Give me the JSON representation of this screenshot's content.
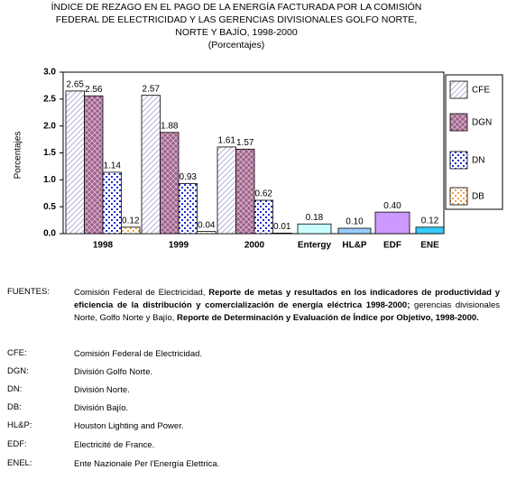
{
  "chart_data": {
    "type": "bar",
    "title": [
      "ÍNDICE DE REZAGO EN EL PAGO DE LA ENERGÍA FACTURADA POR LA COMISIÓN",
      "FEDERAL DE ELECTRICIDAD Y  LAS GERENCIAS DIVISIONALES GOLFO NORTE,",
      "NORTE Y BAJÍO, 1998-2000",
      "(Porcentajes)"
    ],
    "ylabel": "Porcentajes",
    "categories": [
      "1998",
      "1999",
      "2000"
    ],
    "series": [
      {
        "name": "CFE",
        "color": "#e8e4f4",
        "pattern": "hatch",
        "values": [
          2.65,
          2.57,
          1.61
        ]
      },
      {
        "name": "DGN",
        "color": "#a0608c",
        "pattern": "cross",
        "values": [
          2.56,
          1.88,
          1.57
        ]
      },
      {
        "name": "DN",
        "color": "#1c2ccc",
        "pattern": "dots",
        "values": [
          1.14,
          0.93,
          0.62
        ]
      },
      {
        "name": "DB",
        "color": "#f0a040",
        "pattern": "dots",
        "values": [
          0.12,
          0.04,
          0.01
        ]
      }
    ],
    "extra_bars": {
      "categories": [
        "Entergy",
        "HL&P",
        "EDF",
        "ENE"
      ],
      "values": [
        0.18,
        0.1,
        0.4,
        0.12
      ],
      "value_labels": [
        "0.18",
        "0.10",
        "0.40",
        "0.12"
      ],
      "colors": [
        "#ccffff",
        "#99ccff",
        "#cc99ff",
        "#33ccff"
      ]
    },
    "ylim": [
      0,
      3
    ],
    "yticks": [
      {
        "value": 0,
        "label": "0.0"
      },
      {
        "value": 0.5,
        "label": "0.5"
      },
      {
        "value": 1,
        "label": "1.0"
      },
      {
        "value": 1.5,
        "label": "1.5"
      },
      {
        "value": 2,
        "label": "2.0"
      },
      {
        "value": 2.5,
        "label": "2.5"
      },
      {
        "value": 3,
        "label": "3.0"
      }
    ]
  },
  "notes": [
    {
      "label": "FUENTES:",
      "parts": [
        {
          "text": "Comisión Federal de Electricidad, ",
          "bold": false
        },
        {
          "text": "Reporte de metas y resultados en los indicadores de productividad y eficiencia de la distribución y comercialización de energía eléctrica 1998-2000;",
          "bold": true
        },
        {
          "text": " gerencias divisionales Norte, Golfo Norte y Bajío, ",
          "bold": false
        },
        {
          "text": "Reporte de Determinación y Evaluación de Índice por Objetivo, 1998-2000.",
          "bold": true
        }
      ]
    },
    {
      "label": "CFE:",
      "parts": [
        {
          "text": "Comisión Federal de Electricidad.",
          "bold": false
        }
      ]
    },
    {
      "label": "DGN:",
      "parts": [
        {
          "text": "División Golfo Norte.",
          "bold": false
        }
      ]
    },
    {
      "label": "DN:",
      "parts": [
        {
          "text": "División Norte.",
          "bold": false
        }
      ]
    },
    {
      "label": "DB:",
      "parts": [
        {
          "text": "División Bajío.",
          "bold": false
        }
      ]
    },
    {
      "label": "HL&P:",
      "parts": [
        {
          "text": "Houston Lighting and Power.",
          "bold": false
        }
      ]
    },
    {
      "label": "EDF:",
      "parts": [
        {
          "text": "Electricité de France.",
          "bold": false
        }
      ]
    },
    {
      "label": "ENEL:",
      "parts": [
        {
          "text": "Ente Nazionale Per l'Energía Elettrica.",
          "bold": false
        }
      ]
    }
  ]
}
